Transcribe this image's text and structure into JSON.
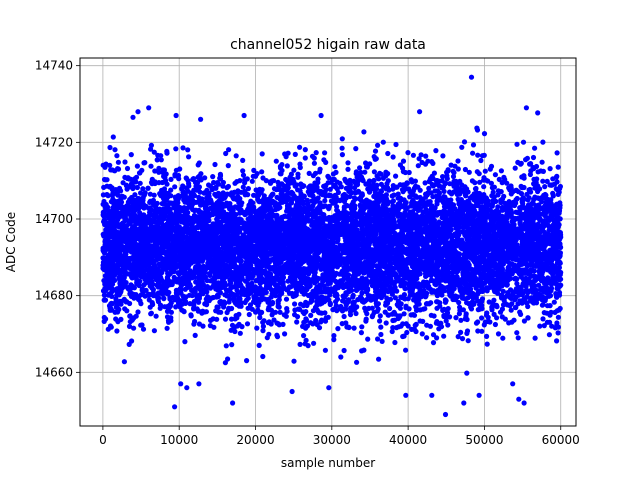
{
  "chart_data": {
    "type": "scatter",
    "title": "channel052 higain raw data",
    "xlabel": "sample number",
    "ylabel": "ADC Code",
    "xlim": [
      -3000,
      62000
    ],
    "ylim": [
      14646,
      14742
    ],
    "grid": true,
    "legend": "none",
    "marker_color": "#0000ff",
    "x_ticks": [
      0,
      10000,
      20000,
      30000,
      40000,
      50000,
      60000
    ],
    "x_tick_labels": [
      "0",
      "10000",
      "20000",
      "30000",
      "40000",
      "50000",
      "60000"
    ],
    "y_ticks": [
      14660,
      14680,
      14700,
      14720,
      14740
    ],
    "y_tick_labels": [
      "14660",
      "14680",
      "14700",
      "14720",
      "14740"
    ],
    "series": [
      {
        "distribution_summary": {
          "x_range": [
            0,
            59999
          ],
          "y_center": 14693,
          "dense_band": [
            14673,
            14712
          ],
          "scattered_range": [
            14651,
            14729
          ]
        },
        "outliers": [
          {
            "x": 48300,
            "y": 14737
          },
          {
            "x": 6000,
            "y": 14729
          },
          {
            "x": 55500,
            "y": 14729
          },
          {
            "x": 4600,
            "y": 14728
          },
          {
            "x": 41500,
            "y": 14728
          },
          {
            "x": 9600,
            "y": 14727
          },
          {
            "x": 18500,
            "y": 14727
          },
          {
            "x": 28600,
            "y": 14727
          },
          {
            "x": 12800,
            "y": 14726
          },
          {
            "x": 9400,
            "y": 14651
          },
          {
            "x": 17000,
            "y": 14652
          },
          {
            "x": 44900,
            "y": 14649
          },
          {
            "x": 47300,
            "y": 14652
          },
          {
            "x": 54500,
            "y": 14653
          },
          {
            "x": 55200,
            "y": 14652
          },
          {
            "x": 10200,
            "y": 14657
          },
          {
            "x": 11000,
            "y": 14656
          },
          {
            "x": 24800,
            "y": 14655
          },
          {
            "x": 29600,
            "y": 14656
          },
          {
            "x": 39700,
            "y": 14654
          },
          {
            "x": 43100,
            "y": 14654
          },
          {
            "x": 49300,
            "y": 14654
          },
          {
            "x": 53700,
            "y": 14657
          }
        ]
      }
    ]
  }
}
